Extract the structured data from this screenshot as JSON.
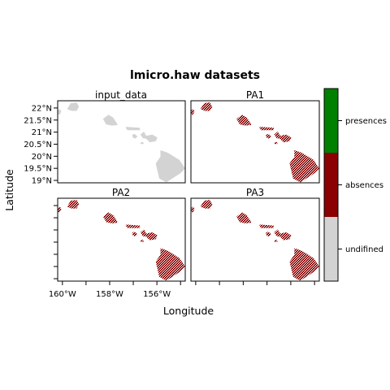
{
  "chart_data": {
    "type": "map",
    "title": "lmicro.haw datasets",
    "xlabel": "Longitude",
    "ylabel": "Latitude",
    "xlim": [
      -160.2,
      -154.8
    ],
    "ylim": [
      18.9,
      22.3
    ],
    "x_ticks": [
      -160,
      -158,
      -156
    ],
    "x_tick_labels": [
      "160°W",
      "158°W",
      "156°W"
    ],
    "y_ticks": [
      19,
      19.5,
      20,
      20.5,
      21,
      21.5,
      22
    ],
    "y_tick_labels": [
      "19°N",
      "19.5°N",
      "20°N",
      "20.5°N",
      "21°N",
      "21.5°N",
      "22°N"
    ],
    "panels": [
      {
        "name": "input_data",
        "fill": "undifined"
      },
      {
        "name": "PA1",
        "fill": "absences"
      },
      {
        "name": "PA2",
        "fill": "absences"
      },
      {
        "name": "PA3",
        "fill": "absences"
      }
    ],
    "islands": [
      {
        "name": "Niihau",
        "points": [
          [
            -160.25,
            21.75
          ],
          [
            -160.2,
            21.9
          ],
          [
            -160.1,
            21.95
          ],
          [
            -160.05,
            21.85
          ],
          [
            -160.12,
            21.72
          ]
        ]
      },
      {
        "name": "Kauai",
        "points": [
          [
            -159.8,
            21.95
          ],
          [
            -159.65,
            22.2
          ],
          [
            -159.4,
            22.23
          ],
          [
            -159.3,
            22.05
          ],
          [
            -159.4,
            21.88
          ],
          [
            -159.6,
            21.88
          ]
        ]
      },
      {
        "name": "Oahu",
        "points": [
          [
            -158.28,
            21.55
          ],
          [
            -158.05,
            21.72
          ],
          [
            -157.85,
            21.6
          ],
          [
            -157.65,
            21.3
          ],
          [
            -157.9,
            21.27
          ],
          [
            -158.15,
            21.32
          ]
        ]
      },
      {
        "name": "Molokai",
        "points": [
          [
            -157.32,
            21.18
          ],
          [
            -157.3,
            21.22
          ],
          [
            -156.72,
            21.18
          ],
          [
            -156.72,
            21.08
          ],
          [
            -157.25,
            21.08
          ]
        ]
      },
      {
        "name": "Lanai",
        "points": [
          [
            -157.05,
            20.88
          ],
          [
            -156.95,
            20.93
          ],
          [
            -156.82,
            20.82
          ],
          [
            -156.92,
            20.73
          ],
          [
            -157.02,
            20.78
          ]
        ]
      },
      {
        "name": "Maui",
        "points": [
          [
            -156.7,
            20.9
          ],
          [
            -156.55,
            21.02
          ],
          [
            -156.45,
            20.85
          ],
          [
            -156.2,
            20.9
          ],
          [
            -155.98,
            20.78
          ],
          [
            -156.05,
            20.62
          ],
          [
            -156.3,
            20.58
          ],
          [
            -156.45,
            20.72
          ],
          [
            -156.6,
            20.75
          ]
        ]
      },
      {
        "name": "Kahoolawe",
        "points": [
          [
            -156.72,
            20.55
          ],
          [
            -156.6,
            20.6
          ],
          [
            -156.55,
            20.52
          ],
          [
            -156.65,
            20.5
          ]
        ]
      },
      {
        "name": "Hawaii",
        "points": [
          [
            -155.85,
            20.25
          ],
          [
            -155.55,
            20.15
          ],
          [
            -155.05,
            19.85
          ],
          [
            -154.8,
            19.5
          ],
          [
            -155.0,
            19.3
          ],
          [
            -155.6,
            18.92
          ],
          [
            -155.9,
            19.08
          ],
          [
            -156.05,
            19.7
          ],
          [
            -155.85,
            19.98
          ]
        ]
      }
    ],
    "legend": {
      "placement": "right",
      "entries": [
        {
          "label": "presences",
          "color": "#008000"
        },
        {
          "label": "absences",
          "color": "#8B0000"
        },
        {
          "label": "undifined",
          "color": "#D3D3D3"
        }
      ]
    }
  }
}
